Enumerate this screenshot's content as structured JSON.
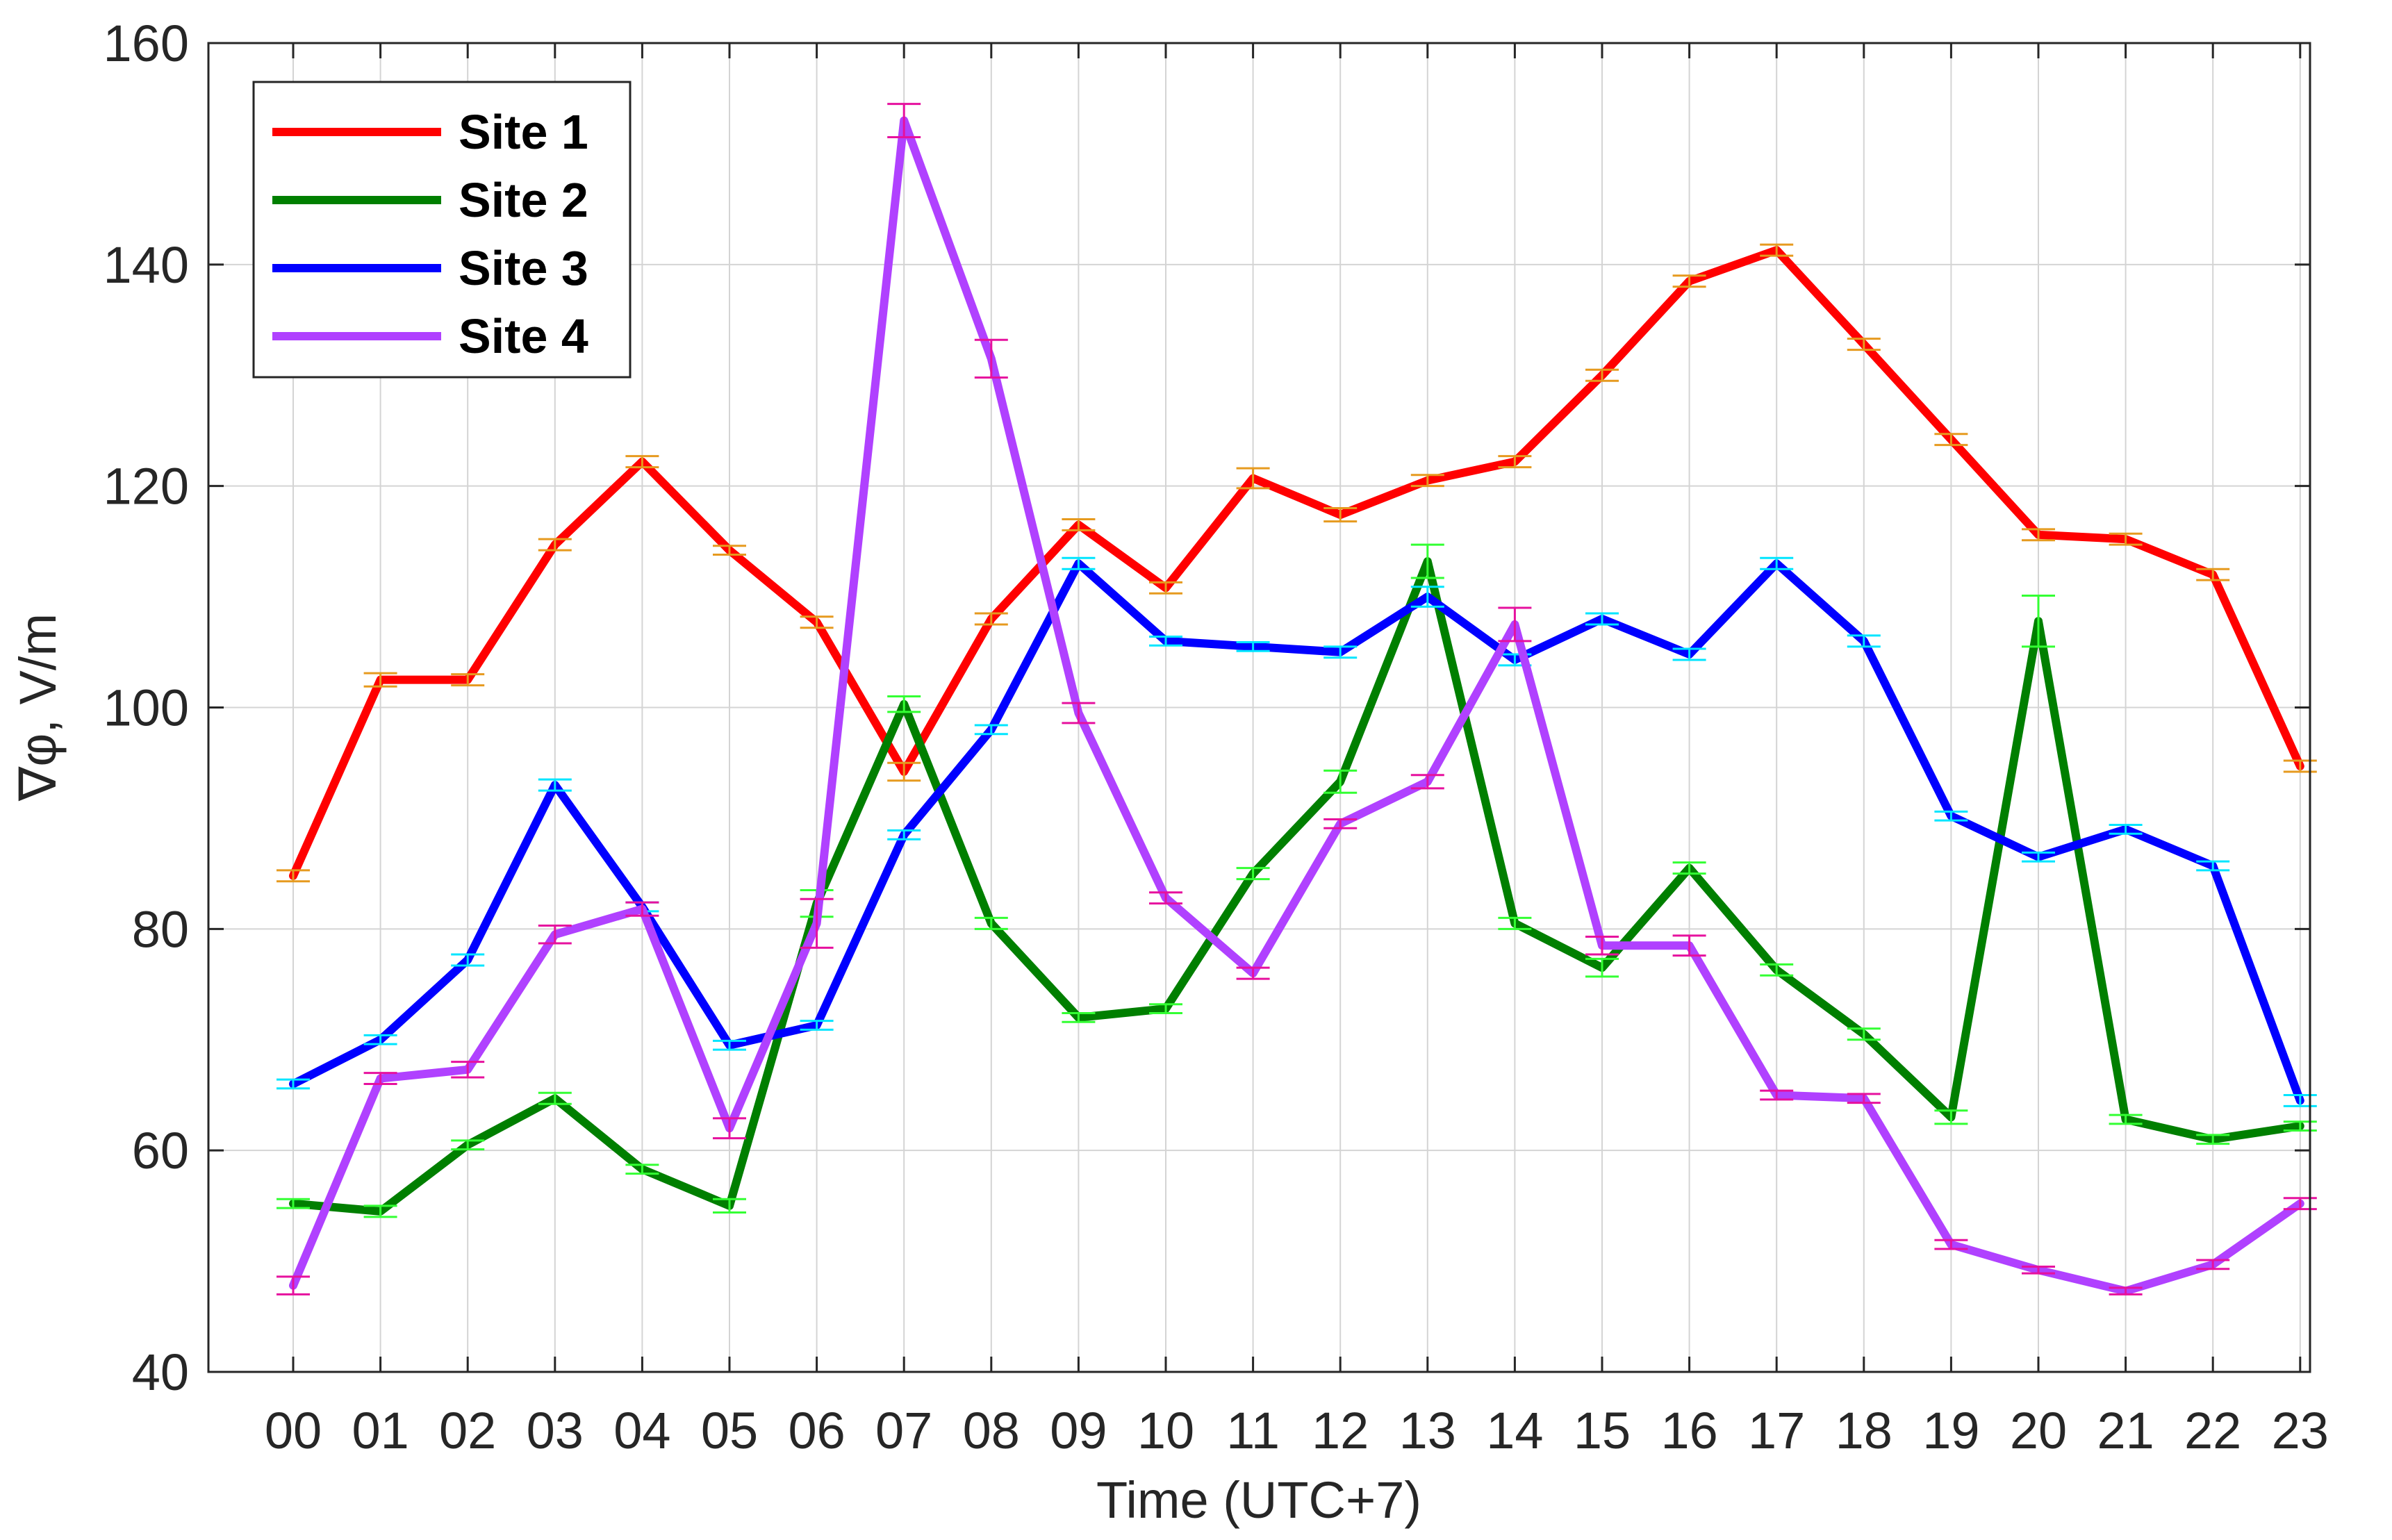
{
  "chart_data": {
    "type": "line",
    "title": "",
    "xlabel": "Time (UTC+7)",
    "ylabel": "∇φ, V/m",
    "categories": [
      "00",
      "01",
      "02",
      "03",
      "04",
      "05",
      "06",
      "07",
      "08",
      "09",
      "10",
      "11",
      "12",
      "13",
      "14",
      "15",
      "16",
      "17",
      "18",
      "19",
      "20",
      "21",
      "22",
      "23"
    ],
    "yticks": [
      "40",
      "60",
      "80",
      "100",
      "120",
      "140",
      "160"
    ],
    "ylim": [
      40,
      160
    ],
    "grid": true,
    "legend_position": "top-left",
    "error_bars": true,
    "series": [
      {
        "name": "Site 1",
        "color": "#ff0000",
        "errorbar_color": "#e69a1f",
        "values": [
          84.8,
          102.5,
          102.5,
          114.7,
          122.2,
          114.2,
          107.7,
          94.2,
          108.0,
          116.5,
          110.8,
          120.7,
          117.4,
          120.5,
          122.2,
          130.0,
          138.5,
          141.3,
          132.8,
          124.2,
          115.6,
          115.2,
          112.0,
          94.7
        ],
        "errors": [
          0.5,
          0.6,
          0.5,
          0.5,
          0.5,
          0.4,
          0.5,
          0.8,
          0.5,
          0.5,
          0.5,
          0.9,
          0.6,
          0.5,
          0.5,
          0.5,
          0.5,
          0.5,
          0.5,
          0.5,
          0.5,
          0.5,
          0.5,
          0.5
        ]
      },
      {
        "name": "Site 2",
        "color": "#007f00",
        "errorbar_color": "#33ff33",
        "values": [
          55.2,
          54.5,
          60.5,
          64.7,
          58.3,
          55.0,
          82.3,
          100.3,
          80.5,
          72.0,
          72.8,
          85.0,
          93.3,
          113.2,
          80.5,
          76.5,
          85.5,
          76.3,
          70.5,
          63.0,
          107.8,
          62.8,
          61.0,
          62.2
        ],
        "errors": [
          0.4,
          0.5,
          0.4,
          0.5,
          0.4,
          0.6,
          1.2,
          0.7,
          0.5,
          0.4,
          0.4,
          0.5,
          1.0,
          1.5,
          0.5,
          0.8,
          0.5,
          0.5,
          0.5,
          0.6,
          2.3,
          0.4,
          0.4,
          0.4
        ]
      },
      {
        "name": "Site 3",
        "color": "#0000ff",
        "errorbar_color": "#00e5ff",
        "values": [
          66.0,
          70.0,
          77.2,
          93.0,
          82.0,
          69.5,
          71.3,
          88.5,
          98.0,
          113.0,
          106.0,
          105.5,
          105.0,
          110.0,
          104.3,
          108.0,
          104.8,
          113.0,
          106.0,
          90.2,
          86.5,
          89.0,
          85.7,
          64.5
        ],
        "errors": [
          0.4,
          0.4,
          0.5,
          0.5,
          0.4,
          0.4,
          0.4,
          0.4,
          0.4,
          0.5,
          0.4,
          0.4,
          0.5,
          0.9,
          0.5,
          0.5,
          0.5,
          0.5,
          0.5,
          0.4,
          0.4,
          0.4,
          0.4,
          0.5
        ]
      },
      {
        "name": "Site 4",
        "color": "#b041ff",
        "errorbar_color": "#e6119e",
        "values": [
          47.8,
          66.5,
          67.3,
          79.5,
          81.8,
          62.0,
          80.5,
          153.0,
          131.5,
          99.5,
          82.8,
          76.0,
          89.5,
          93.3,
          107.5,
          78.5,
          78.5,
          65.0,
          64.7,
          51.5,
          49.2,
          47.3,
          49.7,
          55.2
        ],
        "errors": [
          0.8,
          0.5,
          0.7,
          0.8,
          0.6,
          0.9,
          2.2,
          1.5,
          1.7,
          0.9,
          0.5,
          0.5,
          0.4,
          0.6,
          1.5,
          0.8,
          0.9,
          0.4,
          0.4,
          0.4,
          0.3,
          0.3,
          0.4,
          0.5
        ]
      }
    ]
  }
}
